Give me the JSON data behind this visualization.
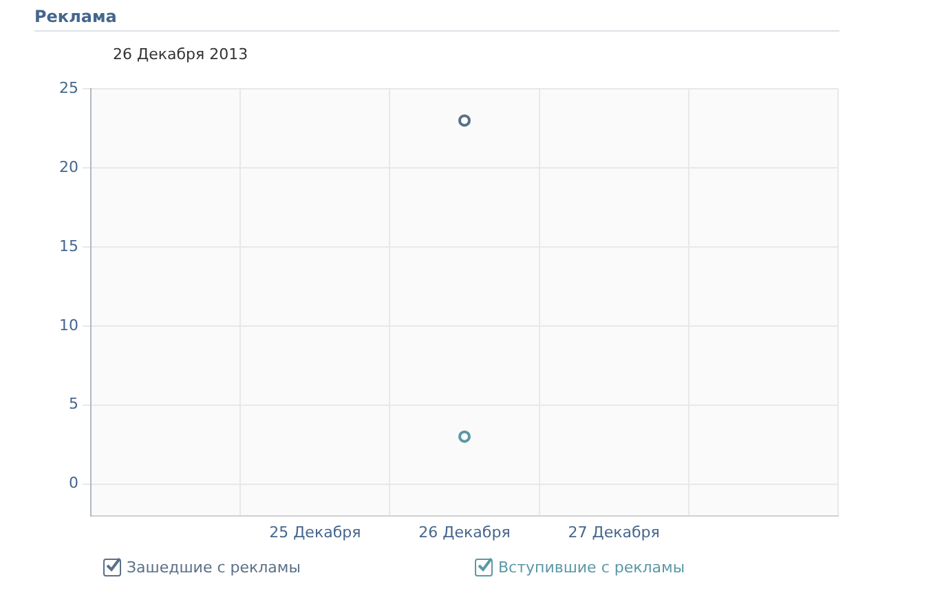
{
  "chart_data": {
    "type": "scatter",
    "title": "Реклама",
    "subtitle": "26 Декабря 2013",
    "categories": [
      null,
      "25 Декабря",
      "26 Декабря",
      "27 Декабря",
      null
    ],
    "series": [
      {
        "name": "Зашедшие с рекламы",
        "color": "#5a7086",
        "values": [
          null,
          null,
          23,
          null,
          null
        ]
      },
      {
        "name": "Вступившие с рекламы",
        "color": "#5b98a6",
        "values": [
          null,
          null,
          3,
          null,
          null
        ]
      }
    ],
    "ylim": [
      -2,
      25
    ],
    "yticks": [
      0,
      5,
      10,
      15,
      20,
      25
    ],
    "grid": true,
    "legend": "bottom",
    "marker": "circle"
  }
}
